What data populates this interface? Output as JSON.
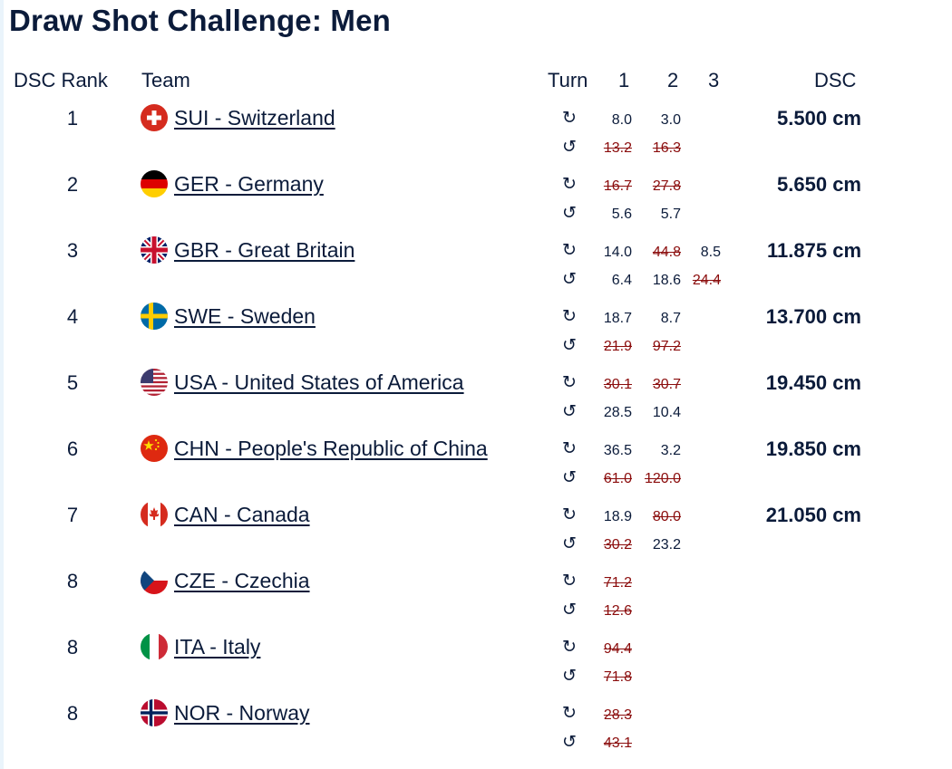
{
  "page": {
    "title": "Draw Shot Challenge: Men"
  },
  "headers": {
    "dsc_rank": "DSC Rank",
    "team": "Team",
    "turn": "Turn",
    "end1": "1",
    "end2": "2",
    "end3": "3",
    "dsc": "DSC"
  },
  "turn_icons": {
    "clockwise": "↻",
    "counterclockwise": "↺"
  },
  "rows": [
    {
      "rank": "1",
      "team": "SUI - Switzerland",
      "flag_icon": "switzerland-flag-icon",
      "dsc": "5.500 cm",
      "cw": [
        {
          "v": "8.0",
          "struck": false
        },
        {
          "v": "3.0",
          "struck": false
        },
        {
          "v": "",
          "struck": false
        }
      ],
      "ccw": [
        {
          "v": "13.2",
          "struck": true
        },
        {
          "v": "16.3",
          "struck": true
        },
        {
          "v": "",
          "struck": false
        }
      ]
    },
    {
      "rank": "2",
      "team": "GER - Germany",
      "flag_icon": "germany-flag-icon",
      "dsc": "5.650 cm",
      "cw": [
        {
          "v": "16.7",
          "struck": true
        },
        {
          "v": "27.8",
          "struck": true
        },
        {
          "v": "",
          "struck": false
        }
      ],
      "ccw": [
        {
          "v": "5.6",
          "struck": false
        },
        {
          "v": "5.7",
          "struck": false
        },
        {
          "v": "",
          "struck": false
        }
      ]
    },
    {
      "rank": "3",
      "team": "GBR - Great Britain",
      "flag_icon": "great-britain-flag-icon",
      "dsc": "11.875 cm",
      "cw": [
        {
          "v": "14.0",
          "struck": false
        },
        {
          "v": "44.8",
          "struck": true
        },
        {
          "v": "8.5",
          "struck": false
        }
      ],
      "ccw": [
        {
          "v": "6.4",
          "struck": false
        },
        {
          "v": "18.6",
          "struck": false
        },
        {
          "v": "24.4",
          "struck": true
        }
      ]
    },
    {
      "rank": "4",
      "team": "SWE - Sweden",
      "flag_icon": "sweden-flag-icon",
      "dsc": "13.700 cm",
      "cw": [
        {
          "v": "18.7",
          "struck": false
        },
        {
          "v": "8.7",
          "struck": false
        },
        {
          "v": "",
          "struck": false
        }
      ],
      "ccw": [
        {
          "v": "21.9",
          "struck": true
        },
        {
          "v": "97.2",
          "struck": true
        },
        {
          "v": "",
          "struck": false
        }
      ]
    },
    {
      "rank": "5",
      "team": "USA - United States of America",
      "flag_icon": "usa-flag-icon",
      "dsc": "19.450 cm",
      "cw": [
        {
          "v": "30.1",
          "struck": true
        },
        {
          "v": "30.7",
          "struck": true
        },
        {
          "v": "",
          "struck": false
        }
      ],
      "ccw": [
        {
          "v": "28.5",
          "struck": false
        },
        {
          "v": "10.4",
          "struck": false
        },
        {
          "v": "",
          "struck": false
        }
      ]
    },
    {
      "rank": "6",
      "team": "CHN - People's Republic of China",
      "flag_icon": "china-flag-icon",
      "dsc": "19.850 cm",
      "cw": [
        {
          "v": "36.5",
          "struck": false
        },
        {
          "v": "3.2",
          "struck": false
        },
        {
          "v": "",
          "struck": false
        }
      ],
      "ccw": [
        {
          "v": "61.0",
          "struck": true
        },
        {
          "v": "120.0",
          "struck": true
        },
        {
          "v": "",
          "struck": false
        }
      ]
    },
    {
      "rank": "7",
      "team": "CAN - Canada",
      "flag_icon": "canada-flag-icon",
      "dsc": "21.050 cm",
      "cw": [
        {
          "v": "18.9",
          "struck": false
        },
        {
          "v": "80.0",
          "struck": true
        },
        {
          "v": "",
          "struck": false
        }
      ],
      "ccw": [
        {
          "v": "30.2",
          "struck": true
        },
        {
          "v": "23.2",
          "struck": false
        },
        {
          "v": "",
          "struck": false
        }
      ]
    },
    {
      "rank": "8",
      "team": "CZE - Czechia",
      "flag_icon": "czechia-flag-icon",
      "dsc": "",
      "cw": [
        {
          "v": "71.2",
          "struck": true
        },
        {
          "v": "",
          "struck": false
        },
        {
          "v": "",
          "struck": false
        }
      ],
      "ccw": [
        {
          "v": "12.6",
          "struck": true
        },
        {
          "v": "",
          "struck": false
        },
        {
          "v": "",
          "struck": false
        }
      ]
    },
    {
      "rank": "8",
      "team": "ITA - Italy",
      "flag_icon": "italy-flag-icon",
      "dsc": "",
      "cw": [
        {
          "v": "94.4",
          "struck": true
        },
        {
          "v": "",
          "struck": false
        },
        {
          "v": "",
          "struck": false
        }
      ],
      "ccw": [
        {
          "v": "71.8",
          "struck": true
        },
        {
          "v": "",
          "struck": false
        },
        {
          "v": "",
          "struck": false
        }
      ]
    },
    {
      "rank": "8",
      "team": "NOR - Norway",
      "flag_icon": "norway-flag-icon",
      "dsc": "",
      "cw": [
        {
          "v": "28.3",
          "struck": true
        },
        {
          "v": "",
          "struck": false
        },
        {
          "v": "",
          "struck": false
        }
      ],
      "ccw": [
        {
          "v": "43.1",
          "struck": true
        },
        {
          "v": "",
          "struck": false
        },
        {
          "v": "",
          "struck": false
        }
      ]
    }
  ],
  "colors": {
    "text": "#0b1b3a",
    "struck": "#8b0d0d"
  }
}
